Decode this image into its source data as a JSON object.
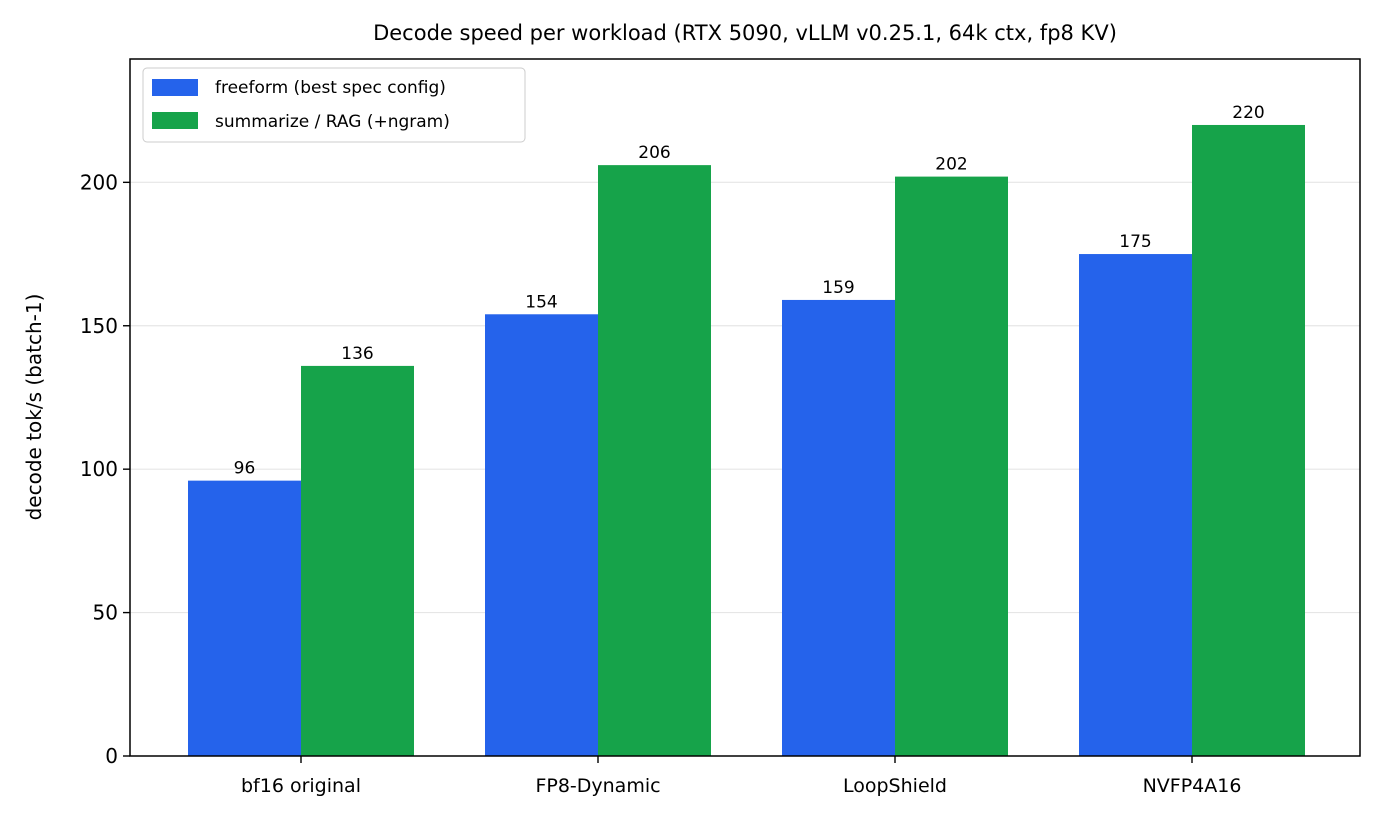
{
  "chart_data": {
    "type": "bar",
    "title": "Decode speed per workload (RTX 5090, vLLM v0.25.1, 64k ctx, fp8 KV)",
    "xlabel": "",
    "ylabel": "decode tok/s (batch-1)",
    "categories": [
      "bf16 original",
      "FP8-Dynamic",
      "LoopShield",
      "NVFP4A16"
    ],
    "series": [
      {
        "name": "freeform (best spec config)",
        "color": "#2563eb",
        "values": [
          96,
          154,
          159,
          175
        ]
      },
      {
        "name": "summarize / RAG (+ngram)",
        "color": "#16a34a",
        "values": [
          136,
          206,
          202,
          220
        ]
      }
    ],
    "ylim": [
      0,
      243
    ],
    "yticks": [
      0,
      50,
      100,
      150,
      200
    ],
    "grid": "horizontal",
    "legend_position": "top-left",
    "data_labels": true
  }
}
